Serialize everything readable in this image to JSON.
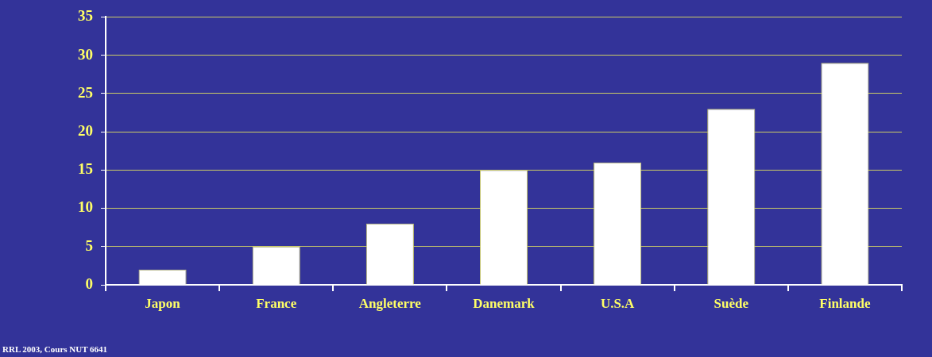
{
  "chart_data": {
    "type": "bar",
    "categories": [
      "Japon",
      "France",
      "Angleterre",
      "Danemark",
      "U.S.A",
      "Suède",
      "Finlande"
    ],
    "values": [
      2,
      5,
      8,
      15,
      16,
      23,
      29
    ],
    "color": "#ffffff",
    "ylim": [
      0,
      35
    ],
    "yticks": [
      0,
      5,
      10,
      15,
      20,
      25,
      30,
      35
    ],
    "grid": "y",
    "legend": false,
    "annotations": [
      "RRL 2003, Cours NUT 6641"
    ]
  }
}
